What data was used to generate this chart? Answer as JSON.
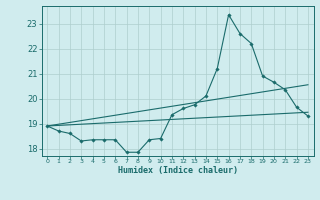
{
  "xlabel": "Humidex (Indice chaleur)",
  "bg_color": "#d0ecee",
  "grid_color": "#aecece",
  "line_color": "#1a6b6b",
  "xlim": [
    -0.5,
    23.5
  ],
  "ylim": [
    17.7,
    23.7
  ],
  "yticks": [
    18,
    19,
    20,
    21,
    22,
    23
  ],
  "xticks": [
    0,
    1,
    2,
    3,
    4,
    5,
    6,
    7,
    8,
    9,
    10,
    11,
    12,
    13,
    14,
    15,
    16,
    17,
    18,
    19,
    20,
    21,
    22,
    23
  ],
  "series1_x": [
    0,
    1,
    2,
    3,
    4,
    5,
    6,
    7,
    8,
    9,
    10,
    11,
    12,
    13,
    14,
    15,
    16,
    17,
    18,
    19,
    20,
    21,
    22,
    23
  ],
  "series1_y": [
    18.9,
    18.7,
    18.6,
    18.3,
    18.35,
    18.35,
    18.35,
    17.85,
    17.85,
    18.35,
    18.4,
    19.35,
    19.6,
    19.75,
    20.1,
    21.2,
    23.35,
    22.6,
    22.2,
    20.9,
    20.65,
    20.35,
    19.65,
    19.3
  ],
  "series2_x": [
    0,
    23
  ],
  "series2_y": [
    18.9,
    19.45
  ],
  "series3_x": [
    0,
    23
  ],
  "series3_y": [
    18.9,
    20.55
  ]
}
